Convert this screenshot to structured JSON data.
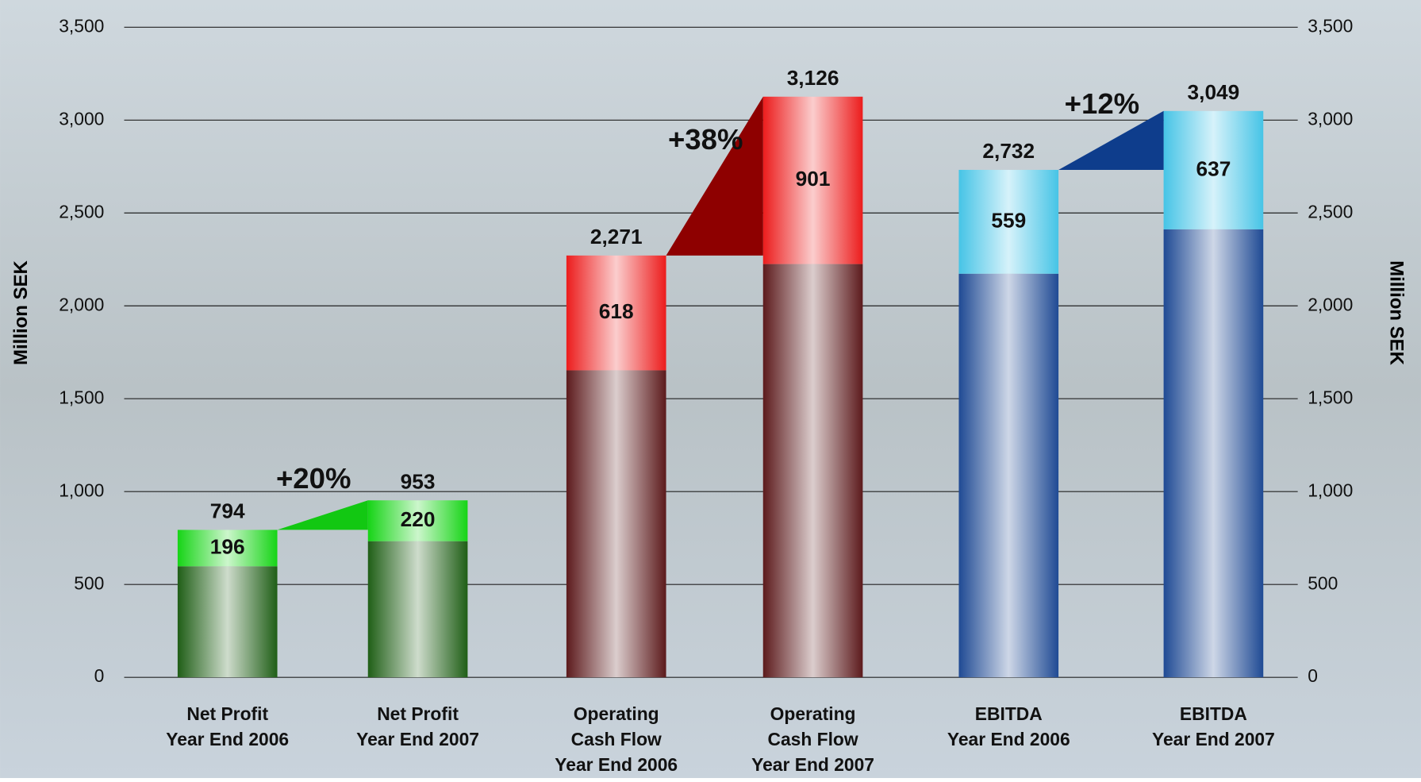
{
  "chart_data": {
    "type": "stacked_bar",
    "y_label": "Million SEK",
    "y2_label": "Million SEK",
    "categories": [
      [
        "Net Profit",
        "Year End 2006"
      ],
      [
        "Net Profit",
        "Year End 2007"
      ],
      [
        "Operating",
        "Cash Flow",
        "Year End 2006"
      ],
      [
        "Operating",
        "Cash Flow",
        "Year End 2007"
      ],
      [
        "EBITDA",
        "Year End 2006"
      ],
      [
        "EBITDA",
        "Year End 2007"
      ]
    ],
    "series": [
      {
        "values": [
          598,
          733,
          1653,
          2225,
          2173,
          2412
        ],
        "colors": [
          "#1f5e16",
          "#1f5e16",
          "#5c1a1c",
          "#5c1a1c",
          "#1f4a94",
          "#1f4a94"
        ]
      },
      {
        "values": [
          196,
          220,
          618,
          901,
          559,
          637
        ],
        "colors": [
          "#16d416",
          "#16d416",
          "#ec1c1c",
          "#ec1c1c",
          "#46c4e6",
          "#46c4e6"
        ]
      }
    ],
    "totals": {
      "values": [
        794,
        953,
        2271,
        3126,
        2732,
        3049
      ],
      "value_labels": [
        "794",
        "953",
        "2,271",
        "3,126",
        "2,732",
        "3,049"
      ]
    },
    "annotations": [
      {
        "text": "+20%",
        "color": "#12c812"
      },
      {
        "text": "+38%",
        "color": "#8e0000"
      },
      {
        "text": "+12%",
        "color": "#0e3d8c"
      }
    ],
    "ylim": [
      0,
      3500
    ],
    "yticks": [
      0,
      500,
      {
        "value": 1000,
        "label": "1,000"
      },
      {
        "value": 1500,
        "label": "1,500"
      },
      {
        "value": 2000,
        "label": "2,000"
      },
      {
        "value": 2500,
        "label": "2,500"
      },
      {
        "value": 3000,
        "label": "3,000"
      },
      {
        "value": 3500,
        "label": "3,500"
      }
    ],
    "grid": true
  }
}
